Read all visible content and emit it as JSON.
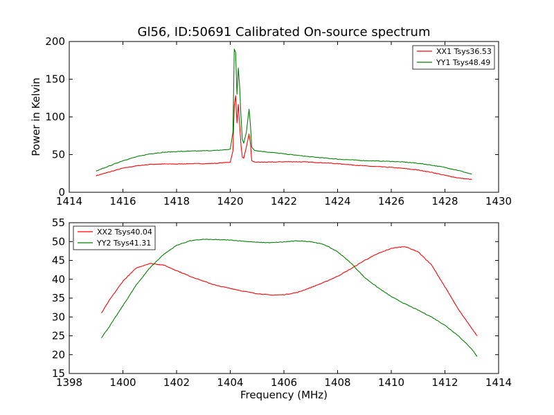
{
  "colors": {
    "xx": "#ff0000",
    "yy": "#008000",
    "axis": "#000000",
    "background": "#ffffff"
  },
  "chart_data": [
    {
      "type": "line",
      "title": "Gl56, ID:50691 Calibrated On-source spectrum",
      "xlabel": "",
      "ylabel": "Power in Kelvin",
      "xlim": [
        1414,
        1430
      ],
      "ylim": [
        0,
        200
      ],
      "xticks": [
        "1414",
        "1416",
        "1418",
        "1420",
        "1422",
        "1424",
        "1426",
        "1428",
        "1430"
      ],
      "yticks": [
        "0",
        "50",
        "100",
        "150",
        "200"
      ],
      "legend_location": "top-right",
      "series": [
        {
          "name": "XX1 Tsys36.53",
          "color": "#ff0000",
          "x": [
            1415.0,
            1415.5,
            1416.0,
            1416.5,
            1417.0,
            1417.5,
            1418.0,
            1418.5,
            1419.0,
            1419.5,
            1420.0,
            1420.1,
            1420.15,
            1420.2,
            1420.25,
            1420.3,
            1420.35,
            1420.4,
            1420.45,
            1420.5,
            1420.6,
            1420.7,
            1420.75,
            1420.8,
            1420.9,
            1421.0,
            1421.5,
            1422.0,
            1422.5,
            1423.0,
            1423.5,
            1424.0,
            1424.5,
            1425.0,
            1425.5,
            1426.0,
            1426.5,
            1427.0,
            1427.5,
            1428.0,
            1428.5,
            1429.0
          ],
          "y": [
            22,
            27,
            32,
            35,
            37,
            37.5,
            37.5,
            38,
            38,
            38.5,
            40,
            55,
            115,
            128,
            92,
            117,
            90,
            62,
            47,
            45,
            60,
            77,
            65,
            42,
            40,
            40,
            40,
            40.5,
            40.5,
            40,
            39,
            38,
            36.5,
            35,
            34,
            33,
            31.5,
            29.5,
            26.5,
            22.5,
            19,
            17
          ]
        },
        {
          "name": "YY1 Tsys48.49",
          "color": "#008000",
          "x": [
            1415.0,
            1415.5,
            1416.0,
            1416.5,
            1417.0,
            1417.5,
            1418.0,
            1418.5,
            1419.0,
            1419.5,
            1420.0,
            1420.1,
            1420.15,
            1420.2,
            1420.25,
            1420.3,
            1420.35,
            1420.4,
            1420.45,
            1420.5,
            1420.6,
            1420.7,
            1420.75,
            1420.8,
            1420.9,
            1421.0,
            1421.5,
            1422.0,
            1422.5,
            1423.0,
            1423.5,
            1424.0,
            1424.5,
            1425.0,
            1425.5,
            1426.0,
            1426.5,
            1427.0,
            1427.5,
            1428.0,
            1428.5,
            1429.0
          ],
          "y": [
            28,
            35,
            42,
            47,
            51,
            53,
            54,
            54.5,
            55,
            55.5,
            57,
            80,
            190,
            185,
            130,
            165,
            140,
            100,
            70,
            65,
            80,
            110,
            90,
            60,
            56,
            55,
            53,
            51,
            49,
            47,
            45.5,
            44,
            43,
            42,
            41.5,
            41,
            40,
            38.5,
            36,
            33,
            29,
            24
          ]
        }
      ]
    },
    {
      "type": "line",
      "title": "",
      "xlabel": "Frequency (MHz)",
      "ylabel": "",
      "xlim": [
        1398,
        1414
      ],
      "ylim": [
        15,
        55
      ],
      "xticks": [
        "1398",
        "1400",
        "1402",
        "1404",
        "1406",
        "1408",
        "1410",
        "1412",
        "1414"
      ],
      "yticks": [
        "15",
        "20",
        "25",
        "30",
        "35",
        "40",
        "45",
        "50",
        "55"
      ],
      "legend_location": "top-left",
      "series": [
        {
          "name": "XX2 Tsys40.04",
          "color": "#ff0000",
          "x": [
            1399.2,
            1399.5,
            1400.0,
            1400.5,
            1401.0,
            1401.5,
            1402.0,
            1402.5,
            1403.0,
            1403.5,
            1404.0,
            1404.5,
            1405.0,
            1405.5,
            1406.0,
            1406.5,
            1407.0,
            1407.5,
            1408.0,
            1408.5,
            1409.0,
            1409.5,
            1410.0,
            1410.5,
            1411.0,
            1411.5,
            1412.0,
            1412.5,
            1413.0,
            1413.2
          ],
          "y": [
            31,
            34.5,
            39.5,
            43,
            44.2,
            43.8,
            42.3,
            40.8,
            39.5,
            38.3,
            37.6,
            36.8,
            36.2,
            35.8,
            35.9,
            36.5,
            37.8,
            39.2,
            40.8,
            42.8,
            45,
            46.8,
            48.2,
            48.7,
            47.3,
            43.8,
            38,
            32,
            27,
            25
          ]
        },
        {
          "name": "YY2 Tsys41.31",
          "color": "#008000",
          "x": [
            1399.2,
            1399.5,
            1400.0,
            1400.5,
            1401.0,
            1401.5,
            1402.0,
            1402.5,
            1403.0,
            1403.5,
            1404.0,
            1404.5,
            1405.0,
            1405.5,
            1406.0,
            1406.5,
            1407.0,
            1407.5,
            1408.0,
            1408.5,
            1409.0,
            1409.5,
            1410.0,
            1410.5,
            1411.0,
            1411.5,
            1412.0,
            1412.5,
            1413.0,
            1413.2
          ],
          "y": [
            24.5,
            27.5,
            33,
            38.5,
            43,
            46.5,
            49,
            50.2,
            50.6,
            50.5,
            50.4,
            50.1,
            49.8,
            49.7,
            49.9,
            50.2,
            50,
            49.2,
            47.3,
            44.3,
            40.5,
            37.8,
            35.4,
            33.5,
            31.8,
            30,
            27.8,
            25,
            21.5,
            19.5
          ]
        }
      ]
    }
  ]
}
